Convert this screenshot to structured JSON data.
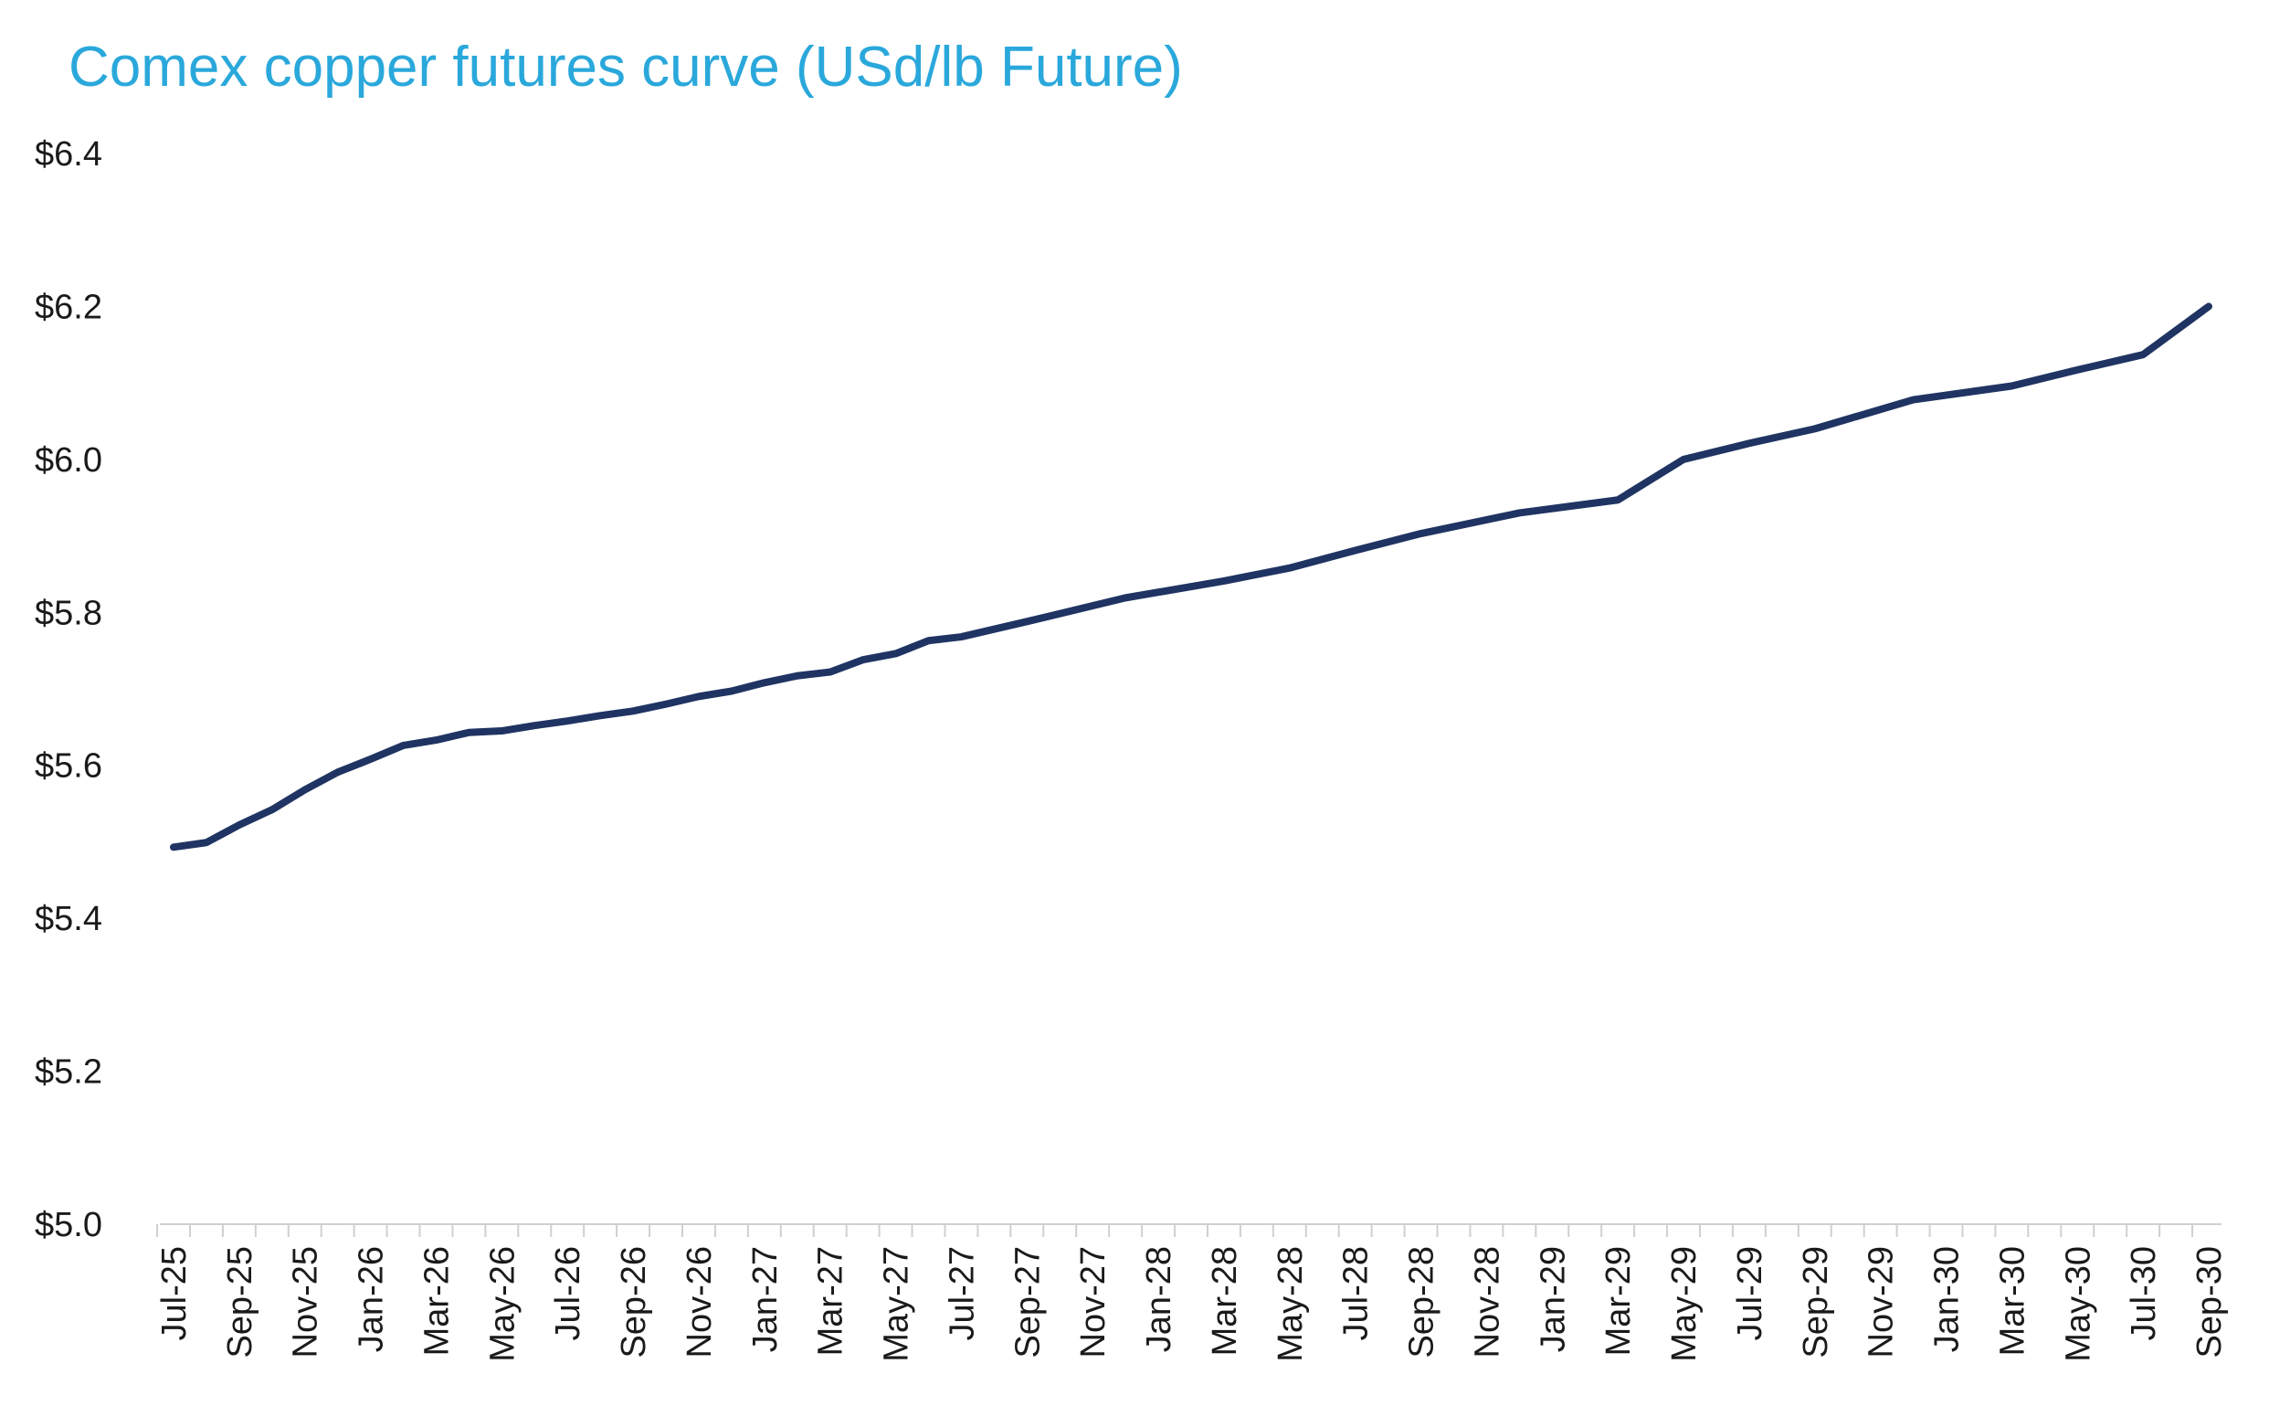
{
  "chart_data": {
    "type": "line",
    "title": "Comex copper futures curve (USd/lb Future)",
    "xlabel": "",
    "ylabel": "",
    "ylim": [
      5.0,
      6.4
    ],
    "yticks": [
      5.0,
      5.2,
      5.4,
      5.6,
      5.8,
      6.0,
      6.2,
      6.4
    ],
    "ytick_labels": [
      "$5.0",
      "$5.2",
      "$5.4",
      "$5.6",
      "$5.8",
      "$6.0",
      "$6.2",
      "$6.4"
    ],
    "xtick_labels": [
      "Jul-25",
      "Sep-25",
      "Nov-25",
      "Jan-26",
      "Mar-26",
      "May-26",
      "Jul-26",
      "Sep-26",
      "Nov-26",
      "Jan-27",
      "Mar-27",
      "May-27",
      "Jul-27",
      "Sep-27",
      "Nov-27",
      "Jan-28",
      "Mar-28",
      "May-28",
      "Jul-28",
      "Sep-28",
      "Nov-28",
      "Jan-29",
      "Mar-29",
      "May-29",
      "Jul-29",
      "Sep-29",
      "Nov-29",
      "Jan-30",
      "Mar-30",
      "May-30",
      "Jul-30",
      "Sep-30"
    ],
    "line_color": "#1F3462",
    "grid": false,
    "legend": "none",
    "series": [
      {
        "x": [
          "Jul-25",
          "Aug-25",
          "Sep-25",
          "Oct-25",
          "Nov-25",
          "Dec-25",
          "Jan-26",
          "Feb-26",
          "Mar-26",
          "Apr-26",
          "May-26",
          "Jun-26",
          "Jul-26",
          "Aug-26",
          "Sep-26",
          "Oct-26",
          "Nov-26",
          "Dec-26",
          "Jan-27",
          "Feb-27",
          "Mar-27",
          "Apr-27",
          "May-27",
          "Jun-27",
          "Jul-27",
          "Sep-27",
          "Dec-27",
          "Mar-28",
          "May-28",
          "Jul-28",
          "Sep-28",
          "Dec-28",
          "Mar-29",
          "May-29",
          "Jul-29",
          "Sep-29",
          "Dec-29",
          "Mar-30",
          "May-30",
          "Jul-30",
          "Sep-30"
        ],
        "values": [
          5.493,
          5.499,
          5.522,
          5.542,
          5.568,
          5.591,
          5.608,
          5.626,
          5.633,
          5.643,
          5.645,
          5.652,
          5.658,
          5.665,
          5.671,
          5.68,
          5.69,
          5.697,
          5.708,
          5.717,
          5.722,
          5.738,
          5.746,
          5.763,
          5.768,
          5.788,
          5.819,
          5.841,
          5.858,
          5.881,
          5.903,
          5.93,
          5.947,
          6.0,
          6.021,
          6.04,
          6.078,
          6.096,
          6.117,
          6.137,
          6.2
        ]
      }
    ]
  }
}
